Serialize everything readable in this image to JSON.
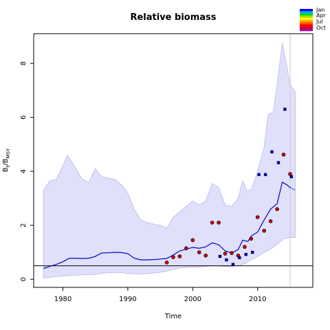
{
  "chart_data": {
    "type": "line",
    "title": "Relative biomass",
    "xlabel": "Time",
    "ylabel_main": "B",
    "ylabel_sub_t": "t",
    "ylabel_sep": "/B",
    "ylabel_sub_msy": "MSY",
    "xlim": [
      1975.5,
      2018.5
    ],
    "ylim": [
      -0.3,
      9.1
    ],
    "x_ticks": [
      1980,
      1990,
      2000,
      2010
    ],
    "y_ticks": [
      0,
      2,
      4,
      6,
      8
    ],
    "reference_line_y": 0.5,
    "vertical_line_x": 2015.0,
    "colors": {
      "ci_fill": "#e0e0fb",
      "ci_edge": "#b0b0ee",
      "median": "#0000cc",
      "index1": "#cc0000",
      "index2": "#00008b",
      "reference": "#000000",
      "vline": "#c8c8c8"
    },
    "legend": {
      "labels": [
        "Jan",
        "Apr",
        "Jul",
        "Oct"
      ],
      "colors": [
        "#0000ff",
        "#00aaff",
        "#00dd00",
        "#aadd00",
        "#ffff00",
        "#ffaa00",
        "#ff5500",
        "#ff0000",
        "#dd0000",
        "#aa00aa"
      ]
    },
    "ci_upper": [
      [
        1977,
        3.3
      ],
      [
        1978,
        3.65
      ],
      [
        1979,
        3.7
      ],
      [
        1980,
        4.2
      ],
      [
        1980.7,
        4.6
      ],
      [
        1982,
        4.1
      ],
      [
        1983,
        3.7
      ],
      [
        1984,
        3.6
      ],
      [
        1985,
        4.1
      ],
      [
        1986,
        3.8
      ],
      [
        1987,
        3.75
      ],
      [
        1988,
        3.7
      ],
      [
        1989,
        3.5
      ],
      [
        1990,
        3.2
      ],
      [
        1991,
        2.6
      ],
      [
        1992,
        2.2
      ],
      [
        1993,
        2.1
      ],
      [
        1994,
        2.05
      ],
      [
        1995,
        2.0
      ],
      [
        1996,
        1.9
      ],
      [
        1997,
        2.3
      ],
      [
        1998,
        2.5
      ],
      [
        1999,
        2.7
      ],
      [
        2000,
        2.9
      ],
      [
        2001,
        2.75
      ],
      [
        2002,
        2.9
      ],
      [
        2003,
        3.55
      ],
      [
        2004,
        3.4
      ],
      [
        2005,
        2.75
      ],
      [
        2006,
        2.7
      ],
      [
        2007,
        3.0
      ],
      [
        2007.7,
        3.65
      ],
      [
        2008.3,
        3.3
      ],
      [
        2009,
        3.3
      ],
      [
        2010,
        4.0
      ],
      [
        2011,
        4.9
      ],
      [
        2011.6,
        6.1
      ],
      [
        2012,
        6.15
      ],
      [
        2012.4,
        6.2
      ],
      [
        2013,
        7.2
      ],
      [
        2013.8,
        8.75
      ],
      [
        2014.5,
        7.9
      ],
      [
        2015,
        7.2
      ],
      [
        2015.8,
        6.95
      ]
    ],
    "ci_lower": [
      [
        1977,
        0.05
      ],
      [
        1978,
        0.08
      ],
      [
        1979,
        0.1
      ],
      [
        1980,
        0.12
      ],
      [
        1981,
        0.14
      ],
      [
        1982,
        0.15
      ],
      [
        1983,
        0.16
      ],
      [
        1984,
        0.17
      ],
      [
        1985,
        0.18
      ],
      [
        1986,
        0.22
      ],
      [
        1987,
        0.24
      ],
      [
        1988,
        0.25
      ],
      [
        1989,
        0.25
      ],
      [
        1990,
        0.22
      ],
      [
        1991,
        0.2
      ],
      [
        1992,
        0.2
      ],
      [
        1993,
        0.21
      ],
      [
        1994,
        0.23
      ],
      [
        1995,
        0.26
      ],
      [
        1996,
        0.3
      ],
      [
        1997,
        0.37
      ],
      [
        1998,
        0.42
      ],
      [
        1999,
        0.44
      ],
      [
        2000,
        0.46
      ],
      [
        2001,
        0.45
      ],
      [
        2002,
        0.47
      ],
      [
        2003,
        0.5
      ],
      [
        2004,
        0.49
      ],
      [
        2005,
        0.47
      ],
      [
        2006,
        0.48
      ],
      [
        2007,
        0.5
      ],
      [
        2008,
        0.58
      ],
      [
        2009,
        0.72
      ],
      [
        2010,
        0.85
      ],
      [
        2011,
        1.0
      ],
      [
        2012,
        1.12
      ],
      [
        2013,
        1.3
      ],
      [
        2014,
        1.5
      ],
      [
        2015,
        1.55
      ],
      [
        2015.8,
        1.55
      ]
    ],
    "median": [
      [
        1977,
        0.4
      ],
      [
        1978,
        0.48
      ],
      [
        1979,
        0.55
      ],
      [
        1980,
        0.65
      ],
      [
        1981,
        0.78
      ],
      [
        1982,
        0.78
      ],
      [
        1983,
        0.77
      ],
      [
        1984,
        0.78
      ],
      [
        1985,
        0.85
      ],
      [
        1986,
        0.98
      ],
      [
        1987,
        0.98
      ],
      [
        1988,
        1.0
      ],
      [
        1989,
        0.99
      ],
      [
        1990,
        0.95
      ],
      [
        1991,
        0.78
      ],
      [
        1992,
        0.72
      ],
      [
        1993,
        0.72
      ],
      [
        1994,
        0.73
      ],
      [
        1995,
        0.75
      ],
      [
        1996,
        0.77
      ],
      [
        1997,
        0.9
      ],
      [
        1998,
        1.05
      ],
      [
        1999,
        1.12
      ],
      [
        2000,
        1.18
      ],
      [
        2001,
        1.15
      ],
      [
        2002,
        1.2
      ],
      [
        2003,
        1.35
      ],
      [
        2004,
        1.28
      ],
      [
        2005,
        1.05
      ],
      [
        2006,
        0.98
      ],
      [
        2007,
        1.1
      ],
      [
        2007.7,
        1.45
      ],
      [
        2008.5,
        1.4
      ],
      [
        2009,
        1.6
      ],
      [
        2010,
        1.75
      ],
      [
        2011,
        2.2
      ],
      [
        2012,
        2.6
      ],
      [
        2013,
        2.8
      ],
      [
        2013.8,
        3.6
      ],
      [
        2014.5,
        3.5
      ],
      [
        2015,
        3.4
      ]
    ],
    "median_projection": [
      [
        2015,
        3.4
      ],
      [
        2015.8,
        3.3
      ]
    ],
    "index1": [
      [
        1996,
        0.62
      ],
      [
        1997,
        0.82
      ],
      [
        1998,
        0.85
      ],
      [
        1999,
        1.15
      ],
      [
        2000,
        1.45
      ],
      [
        2001,
        1.0
      ],
      [
        2002,
        0.88
      ],
      [
        2003,
        2.1
      ],
      [
        2004,
        2.1
      ],
      [
        2005,
        0.95
      ],
      [
        2006,
        0.97
      ],
      [
        2007,
        0.88
      ],
      [
        2008,
        1.2
      ],
      [
        2009,
        1.5
      ],
      [
        2010,
        2.3
      ],
      [
        2011,
        1.8
      ],
      [
        2012,
        2.15
      ],
      [
        2013,
        2.6
      ],
      [
        2014,
        4.62
      ],
      [
        2015,
        3.9
      ]
    ],
    "index2": [
      [
        2004.2,
        0.85
      ],
      [
        2005.2,
        0.72
      ],
      [
        2006.2,
        0.55
      ],
      [
        2007.2,
        0.8
      ],
      [
        2008.2,
        0.92
      ],
      [
        2009.2,
        1.0
      ],
      [
        2010.2,
        3.88
      ],
      [
        2011.2,
        3.88
      ],
      [
        2012.2,
        4.72
      ],
      [
        2013.2,
        4.32
      ],
      [
        2014.2,
        6.3
      ],
      [
        2015.2,
        3.8
      ]
    ]
  }
}
